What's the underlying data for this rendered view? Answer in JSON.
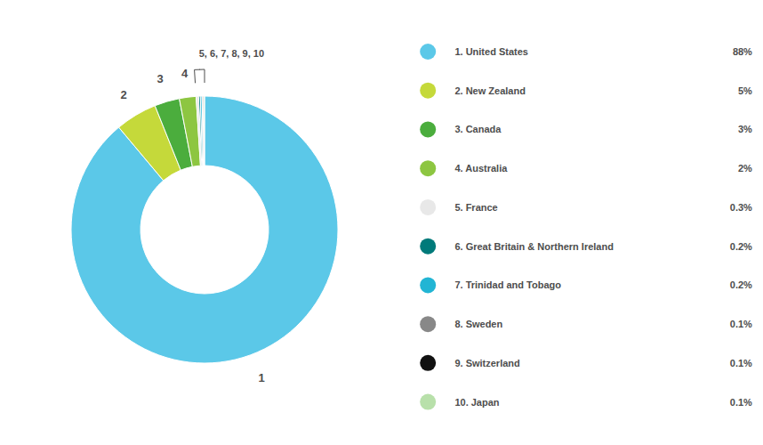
{
  "chart_data": {
    "type": "pie",
    "categories": [
      "1. United States",
      "2. New Zealand",
      "3. Canada",
      "4. Australia",
      "5. France",
      "6. Great Britain & Northern Ireland",
      "7. Trinidad and Tobago",
      "8. Sweden",
      "9. Switzerland",
      "10. Japan"
    ],
    "values": [
      88,
      5,
      3,
      2,
      0.3,
      0.2,
      0.2,
      0.1,
      0.1,
      0.1
    ],
    "value_labels": [
      "88%",
      "5%",
      "3%",
      "2%",
      "0.3%",
      "0.2%",
      "0.2%",
      "0.1%",
      "0.1%",
      "0.1%"
    ],
    "colors": [
      "#5BC8E8",
      "#C5D93A",
      "#4BAD3D",
      "#8DC641",
      "#E8E8E8",
      "#007A7A",
      "#22B5D4",
      "#888888",
      "#111111",
      "#B8E0AA"
    ],
    "annotations": [
      "1",
      "2",
      "3",
      "4",
      "5, 6, 7, 8, 9, 10"
    ],
    "legend": "right"
  }
}
